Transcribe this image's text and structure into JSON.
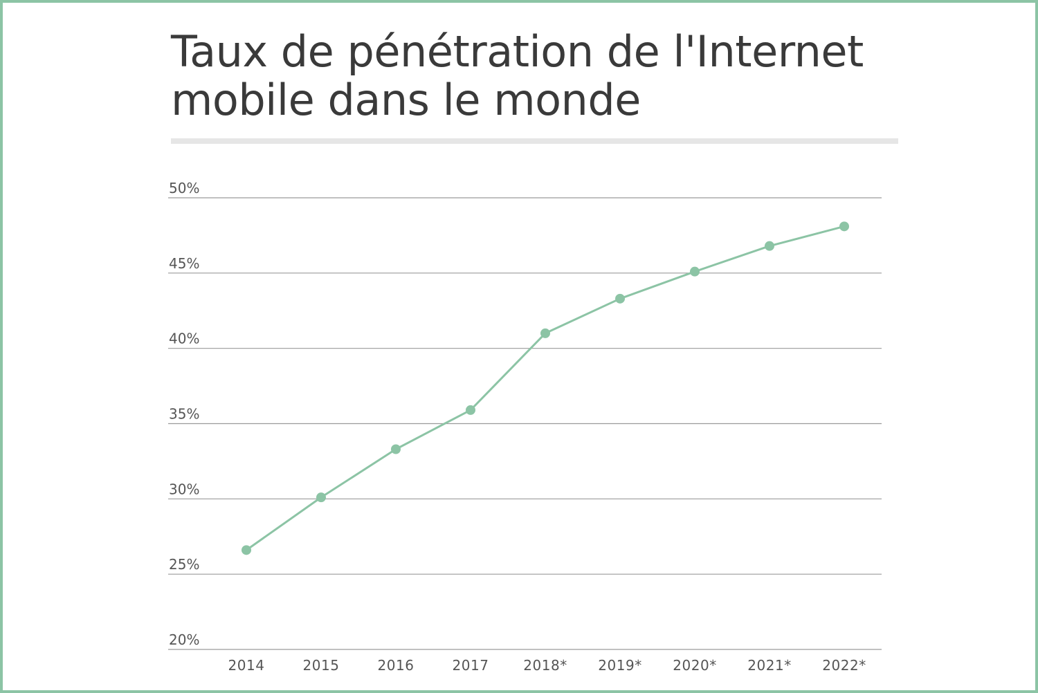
{
  "chart_data": {
    "type": "line",
    "title": "Taux de pénétration de l'Internet mobile dans le monde",
    "title_lines": [
      "Taux de pénétration de l'Internet",
      "mobile dans le monde"
    ],
    "xlabel": "",
    "ylabel": "",
    "categories": [
      "2014",
      "2015",
      "2016",
      "2017",
      "2018*",
      "2019*",
      "2020*",
      "2021*",
      "2022*"
    ],
    "series": [
      {
        "values": [
          26.6,
          30.1,
          33.3,
          35.9,
          41.0,
          43.3,
          45.1,
          46.8,
          48.1
        ]
      }
    ],
    "ylim": [
      20,
      50
    ],
    "yticks": [
      20,
      25,
      30,
      35,
      40,
      45,
      50
    ],
    "ytick_labels": [
      "20%",
      "25%",
      "30%",
      "35%",
      "40%",
      "45%",
      "50%"
    ],
    "grid": true,
    "legend": "none",
    "colors": {
      "line": "#8cc4a5",
      "frame": "#8cc4a5",
      "grid": "#9a9a9a",
      "text": "#3a3a3a"
    }
  }
}
